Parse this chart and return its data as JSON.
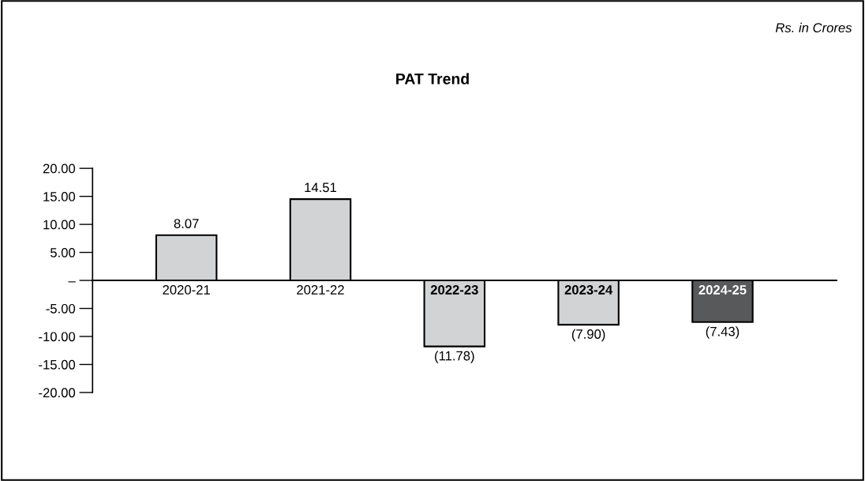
{
  "chart_data": {
    "type": "bar",
    "title": "PAT Trend",
    "annotations": [
      "Rs. in Crores"
    ],
    "categories": [
      "2020-21",
      "2021-22",
      "2022-23",
      "2023-24",
      "2024-25"
    ],
    "values": [
      8.07,
      14.51,
      -11.78,
      -7.9,
      -7.43
    ],
    "colors": [
      "#d1d3d4",
      "#d1d3d4",
      "#d1d3d4",
      "#d1d3d4",
      "#58595b"
    ],
    "value_labels": [
      "8.07",
      "14.51",
      "(11.78)",
      "(7.90)",
      "(7.43)"
    ],
    "ylim": [
      -20,
      20
    ],
    "yticks": [
      {
        "value": 20,
        "label": "20.00"
      },
      {
        "value": 15,
        "label": "15.00"
      },
      {
        "value": 10,
        "label": "10.00"
      },
      {
        "value": 5,
        "label": "5.00"
      },
      {
        "value": 0,
        "label": "–"
      },
      {
        "value": -5,
        "label": "-5.00"
      },
      {
        "value": -10,
        "label": "-10.00"
      },
      {
        "value": -15,
        "label": "-15.00"
      },
      {
        "value": -20,
        "label": "-20.00"
      }
    ],
    "grid": false,
    "legend": false
  }
}
